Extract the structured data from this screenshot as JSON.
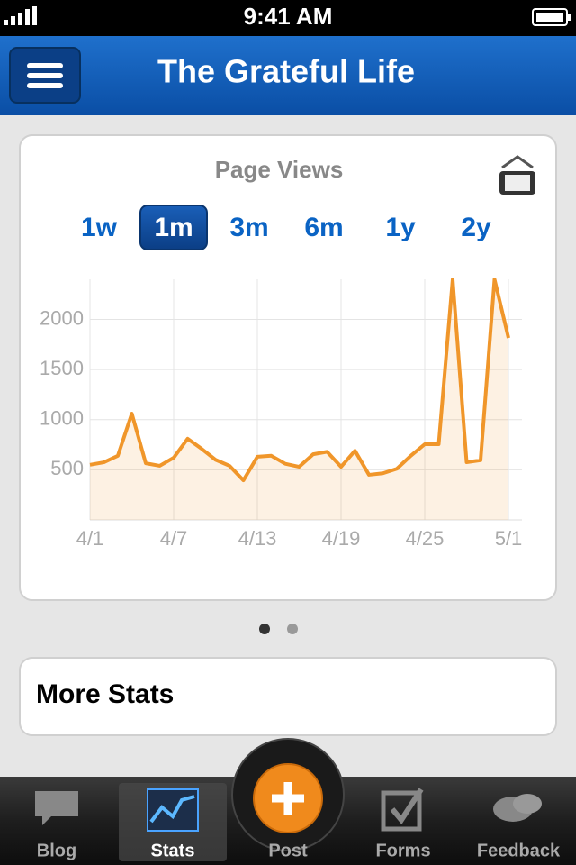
{
  "status_bar": {
    "time": "9:41 AM"
  },
  "nav": {
    "title": "The Grateful Life"
  },
  "chart_data": {
    "type": "line",
    "title": "Page Views",
    "categories": [
      "4/1",
      null,
      null,
      null,
      null,
      null,
      "4/7",
      null,
      null,
      null,
      null,
      null,
      "4/13",
      null,
      null,
      null,
      null,
      null,
      "4/19",
      null,
      null,
      null,
      null,
      null,
      "4/25",
      null,
      null,
      null,
      null,
      null,
      "5/1"
    ],
    "values": [
      550,
      575,
      640,
      1060,
      565,
      540,
      620,
      810,
      710,
      600,
      540,
      395,
      630,
      640,
      560,
      530,
      655,
      680,
      530,
      690,
      450,
      465,
      510,
      640,
      755,
      755,
      2400,
      575,
      595,
      2400,
      1815
    ],
    "color": "#f0962a",
    "ylim": [
      0,
      2400
    ],
    "yticks": [
      500,
      1000,
      1500,
      2000
    ],
    "grid": true
  },
  "ranges": [
    "1w",
    "1m",
    "3m",
    "6m",
    "1y",
    "2y"
  ],
  "selected_range": 1,
  "more_stats": "More Stats",
  "tabs": [
    "Blog",
    "Stats",
    "Post",
    "Forms",
    "Feedback"
  ],
  "selected_tab": 1
}
